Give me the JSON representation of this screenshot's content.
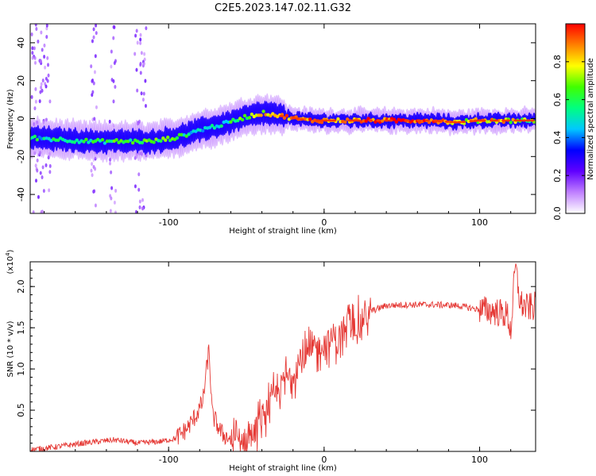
{
  "figure": {
    "title": "C2E5.2023.147.02.11.G32"
  },
  "colors": {
    "snr_line": "#e53935",
    "axis": "#000000",
    "background": "#ffffff"
  },
  "chart_data": [
    {
      "type": "heatmap",
      "title": "",
      "xlabel": "Height of straight line (km)",
      "ylabel": "Frequency (Hz)",
      "xlim": [
        -189,
        136
      ],
      "ylim": [
        -50,
        50
      ],
      "x_ticks": [
        -100,
        0,
        100
      ],
      "y_ticks": [
        -40,
        -20,
        0,
        20,
        40
      ],
      "colorbar": {
        "label": "Normalized spectral amplitude",
        "range": [
          0,
          1
        ],
        "ticks": [
          0.0,
          0.2,
          0.4,
          0.6,
          0.8
        ],
        "colormap": [
          "#ffffff",
          "#c080ff",
          "#6000ff",
          "#0000ff",
          "#00c8ff",
          "#00ff80",
          "#40ff00",
          "#ffff00",
          "#ff8000",
          "#ff0000"
        ]
      },
      "ridge": [
        {
          "x": -189,
          "y": -10,
          "a": 0.5
        },
        {
          "x": -170,
          "y": -11,
          "a": 0.55
        },
        {
          "x": -150,
          "y": -12,
          "a": 0.55
        },
        {
          "x": -130,
          "y": -12,
          "a": 0.6
        },
        {
          "x": -110,
          "y": -12,
          "a": 0.65
        },
        {
          "x": -95,
          "y": -10,
          "a": 0.6
        },
        {
          "x": -80,
          "y": -6,
          "a": 0.5
        },
        {
          "x": -65,
          "y": -3,
          "a": 0.5
        },
        {
          "x": -50,
          "y": 1,
          "a": 0.65
        },
        {
          "x": -38,
          "y": 3,
          "a": 0.8
        },
        {
          "x": -25,
          "y": 1,
          "a": 0.85
        },
        {
          "x": -10,
          "y": -1,
          "a": 0.9
        },
        {
          "x": 10,
          "y": -1,
          "a": 0.9
        },
        {
          "x": 40,
          "y": -1,
          "a": 0.95
        },
        {
          "x": 70,
          "y": -1,
          "a": 0.95
        },
        {
          "x": 85,
          "y": -2,
          "a": 0.7
        },
        {
          "x": 100,
          "y": -1,
          "a": 0.8
        },
        {
          "x": 115,
          "y": -1,
          "a": 0.8
        },
        {
          "x": 136,
          "y": -1,
          "a": 0.6
        }
      ]
    },
    {
      "type": "line",
      "title": "",
      "xlabel": "Height of straight line (km)",
      "ylabel": "SNR (10 * v/v)",
      "yscale_label": "(x10",
      "yscale_exp": "4",
      "yscale_close": ")",
      "xlim": [
        -189,
        136
      ],
      "ylim": [
        0,
        2.3
      ],
      "x_ticks": [
        -100,
        0,
        100
      ],
      "y_ticks": [
        0.5,
        1.0,
        1.5,
        2.0
      ],
      "series": [
        {
          "points": [
            {
              "x": -189,
              "y": 0.02
            },
            {
              "x": -170,
              "y": 0.06
            },
            {
              "x": -155,
              "y": 0.1
            },
            {
              "x": -145,
              "y": 0.12
            },
            {
              "x": -135,
              "y": 0.14
            },
            {
              "x": -120,
              "y": 0.1
            },
            {
              "x": -105,
              "y": 0.12
            },
            {
              "x": -95,
              "y": 0.16
            },
            {
              "x": -88,
              "y": 0.28
            },
            {
              "x": -82,
              "y": 0.45
            },
            {
              "x": -78,
              "y": 0.6
            },
            {
              "x": -74,
              "y": 1.25
            },
            {
              "x": -72,
              "y": 0.45
            },
            {
              "x": -66,
              "y": 0.22
            },
            {
              "x": -58,
              "y": 0.12
            },
            {
              "x": -50,
              "y": 0.15
            },
            {
              "x": -44,
              "y": 0.28
            },
            {
              "x": -38,
              "y": 0.5
            },
            {
              "x": -32,
              "y": 0.65
            },
            {
              "x": -26,
              "y": 0.85
            },
            {
              "x": -20,
              "y": 0.95
            },
            {
              "x": -14,
              "y": 1.1
            },
            {
              "x": -8,
              "y": 1.2
            },
            {
              "x": -2,
              "y": 1.3
            },
            {
              "x": 6,
              "y": 1.38
            },
            {
              "x": 14,
              "y": 1.45
            },
            {
              "x": 22,
              "y": 1.55
            },
            {
              "x": 30,
              "y": 1.7
            },
            {
              "x": 40,
              "y": 1.77
            },
            {
              "x": 55,
              "y": 1.78
            },
            {
              "x": 70,
              "y": 1.78
            },
            {
              "x": 85,
              "y": 1.77
            },
            {
              "x": 100,
              "y": 1.72
            },
            {
              "x": 110,
              "y": 1.7
            },
            {
              "x": 118,
              "y": 1.65
            },
            {
              "x": 120,
              "y": 1.45
            },
            {
              "x": 123,
              "y": 2.25
            },
            {
              "x": 126,
              "y": 1.8
            },
            {
              "x": 130,
              "y": 1.74
            },
            {
              "x": 136,
              "y": 1.76
            }
          ],
          "color": "#e53935"
        }
      ]
    }
  ]
}
